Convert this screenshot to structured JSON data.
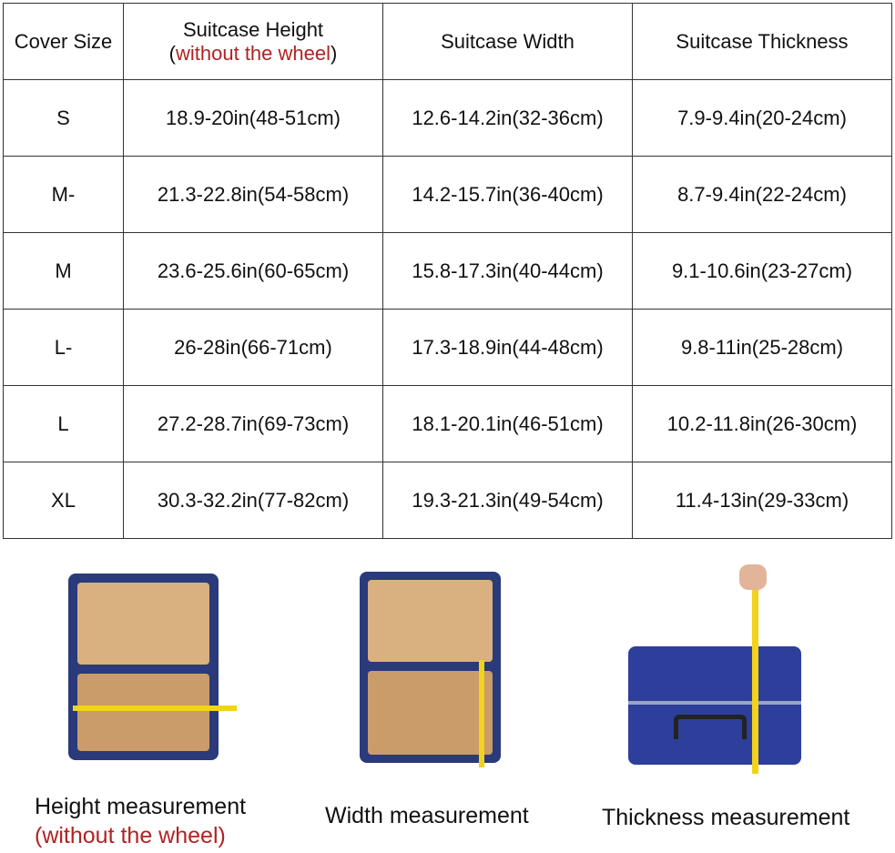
{
  "table": {
    "headers": [
      {
        "text": "Cover Size"
      },
      {
        "text": "Suitcase Height",
        "note": "without the wheel"
      },
      {
        "text": "Suitcase Width"
      },
      {
        "text": "Suitcase Thickness"
      }
    ],
    "rows": [
      [
        "S",
        "18.9-20in(48-51cm)",
        "12.6-14.2in(32-36cm)",
        "7.9-9.4in(20-24cm)"
      ],
      [
        "M-",
        "21.3-22.8in(54-58cm)",
        "14.2-15.7in(36-40cm)",
        "8.7-9.4in(22-24cm)"
      ],
      [
        "M",
        "23.6-25.6in(60-65cm)",
        "15.8-17.3in(40-44cm)",
        "9.1-10.6in(23-27cm)"
      ],
      [
        "L-",
        "26-28in(66-71cm)",
        "17.3-18.9in(44-48cm)",
        "9.8-11in(25-28cm)"
      ],
      [
        "L",
        "27.2-28.7in(69-73cm)",
        "18.1-20.1in(46-51cm)",
        "10.2-11.8in(26-30cm)"
      ],
      [
        "XL",
        "30.3-32.2in(77-82cm)",
        "19.3-21.3in(49-54cm)",
        "11.4-13in(29-33cm)"
      ]
    ]
  },
  "captions": {
    "height": "Height measurement",
    "height_note": "(without the wheel)",
    "width": "Width measurement",
    "thickness": "Thickness measurement"
  },
  "colors": {
    "note_red": "#b22222",
    "suitcase_blue": "#2a3a7a",
    "tape_yellow": "#f2d21b"
  }
}
